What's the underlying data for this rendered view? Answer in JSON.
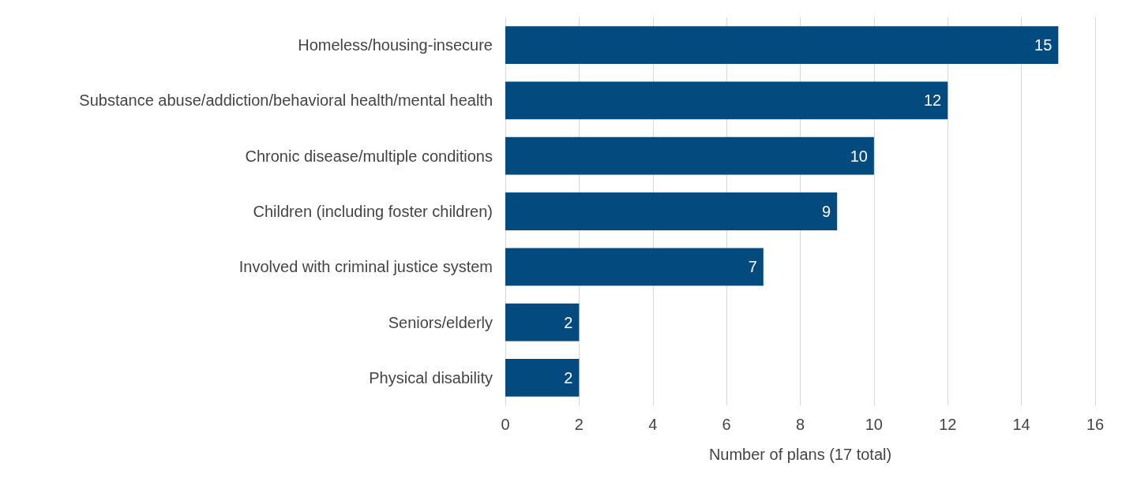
{
  "chart_data": {
    "type": "bar",
    "orientation": "horizontal",
    "xlabel": "Number of plans (17 total)",
    "categories": [
      "Homeless/housing-insecure",
      "Substance abuse/addiction/behavioral health/mental health",
      "Chronic disease/multiple conditions",
      "Children (including foster children)",
      "Involved with criminal justice system",
      "Seniors/elderly",
      "Physical disability"
    ],
    "values": [
      15,
      12,
      10,
      9,
      7,
      2,
      2
    ],
    "color": "#034b7f",
    "xlim": [
      0,
      16
    ],
    "xticks": [
      0,
      2,
      4,
      6,
      8,
      10,
      12,
      14,
      16
    ],
    "grid": "x",
    "data_labels": true
  }
}
